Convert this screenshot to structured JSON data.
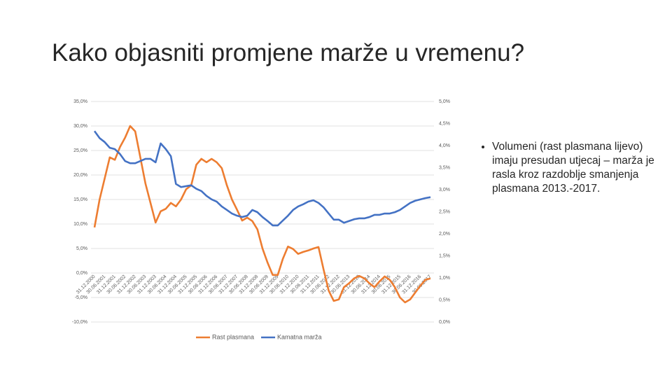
{
  "title": "Kako objasniti promjene marže u vremenu?",
  "bullets": [
    "Volumeni (rast plasmana lijevo) imaju presudan utjecaj – marža je rasla kroz razdoblje smanjenja plasmana 2013.-2017."
  ],
  "chart_data": {
    "type": "line",
    "categories": [
      "31.12.2000",
      null,
      "30.06.2001",
      null,
      "31.12.2001",
      null,
      "30.06.2002",
      null,
      "31.12.2002",
      null,
      "30.06.2003",
      null,
      "31.12.2003",
      null,
      "30.06.2004",
      null,
      "31.12.2004",
      null,
      "30.06.2005",
      null,
      "31.12.2005",
      null,
      "30.06.2006",
      null,
      "31.12.2006",
      null,
      "30.06.2007",
      null,
      "31.12.2007",
      null,
      "30.06.2008",
      null,
      "31.12.2008",
      null,
      "30.06.2009",
      null,
      "31.12.2009",
      null,
      "30.06.2010",
      null,
      "31.12.2010",
      null,
      "30.06.2011",
      null,
      "31.12.2011",
      null,
      "30.06.2012",
      null,
      "31.12.2012",
      null,
      "30.06.2013",
      null,
      "31.12.2013",
      null,
      "30.06.2014",
      null,
      "31.12.2014",
      null,
      "30.06.2015",
      null,
      "31.12.2015",
      null,
      "30.06.2016",
      null,
      "31.12.2016",
      null,
      "30.06.2017"
    ],
    "series": [
      {
        "name": "Rast plasmana",
        "color": "#ed7d31",
        "values": [
          9.3,
          15.0,
          19.3,
          23.6,
          23.1,
          25.7,
          27.6,
          30.0,
          28.9,
          23.6,
          18.3,
          14.3,
          10.3,
          12.6,
          13.1,
          14.3,
          13.6,
          15.0,
          17.1,
          17.9,
          22.1,
          23.3,
          22.6,
          23.3,
          22.6,
          21.4,
          17.9,
          15.0,
          12.9,
          10.7,
          11.3,
          10.6,
          8.9,
          5.0,
          2.1,
          -0.4,
          -0.4,
          2.9,
          5.4,
          4.9,
          3.9,
          4.3,
          4.6,
          5.0,
          5.3,
          0.7,
          -3.6,
          -5.7,
          -5.4,
          -2.9,
          -2.1,
          -1.1,
          -0.6,
          -1.1,
          -2.1,
          -2.9,
          -1.7,
          -0.7,
          -1.4,
          -2.9,
          -5.0,
          -6.0,
          -5.4,
          -4.0,
          -2.6,
          -1.4,
          -1.1
        ]
      },
      {
        "name": "Kamatna marža",
        "color": "#4472c4",
        "axis": "y2",
        "values": [
          4.33,
          4.17,
          4.08,
          3.95,
          3.92,
          3.81,
          3.65,
          3.6,
          3.6,
          3.65,
          3.7,
          3.7,
          3.62,
          4.05,
          3.92,
          3.76,
          3.13,
          3.06,
          3.08,
          3.1,
          3.02,
          2.97,
          2.86,
          2.78,
          2.73,
          2.62,
          2.54,
          2.46,
          2.41,
          2.38,
          2.41,
          2.54,
          2.49,
          2.38,
          2.29,
          2.19,
          2.19,
          2.3,
          2.41,
          2.54,
          2.62,
          2.67,
          2.73,
          2.76,
          2.7,
          2.6,
          2.46,
          2.32,
          2.32,
          2.25,
          2.29,
          2.33,
          2.35,
          2.35,
          2.38,
          2.43,
          2.43,
          2.46,
          2.46,
          2.49,
          2.54,
          2.62,
          2.7,
          2.75,
          2.78,
          2.81,
          2.83
        ]
      }
    ],
    "ylim": [
      -10,
      35
    ],
    "yticks": [
      {
        "value": -10,
        "label": "-10,0%"
      },
      {
        "value": -5,
        "label": "-5,0%"
      },
      {
        "value": 0,
        "label": "0,0%"
      },
      {
        "value": 5,
        "label": "5,0%"
      },
      {
        "value": 10,
        "label": "10,0%"
      },
      {
        "value": 15,
        "label": "15,0%"
      },
      {
        "value": 20,
        "label": "20,0%"
      },
      {
        "value": 25,
        "label": "25,0%"
      },
      {
        "value": 30,
        "label": "30,0%"
      },
      {
        "value": 35,
        "label": "35,0%"
      }
    ],
    "y2lim": [
      0,
      5
    ],
    "y2ticks": [
      {
        "value": 0,
        "label": "0,0%"
      },
      {
        "value": 0.5,
        "label": "0,5%"
      },
      {
        "value": 1,
        "label": "1,0%"
      },
      {
        "value": 1.5,
        "label": "1,5%"
      },
      {
        "value": 2,
        "label": "2,0%"
      },
      {
        "value": 2.5,
        "label": "2,5%"
      },
      {
        "value": 3,
        "label": "3,0%"
      },
      {
        "value": 3.5,
        "label": "3,5%"
      },
      {
        "value": 4,
        "label": "4,0%"
      },
      {
        "value": 4.5,
        "label": "4,5%"
      },
      {
        "value": 5,
        "label": "5,0%"
      }
    ],
    "grid": true,
    "legend": "bottom"
  }
}
